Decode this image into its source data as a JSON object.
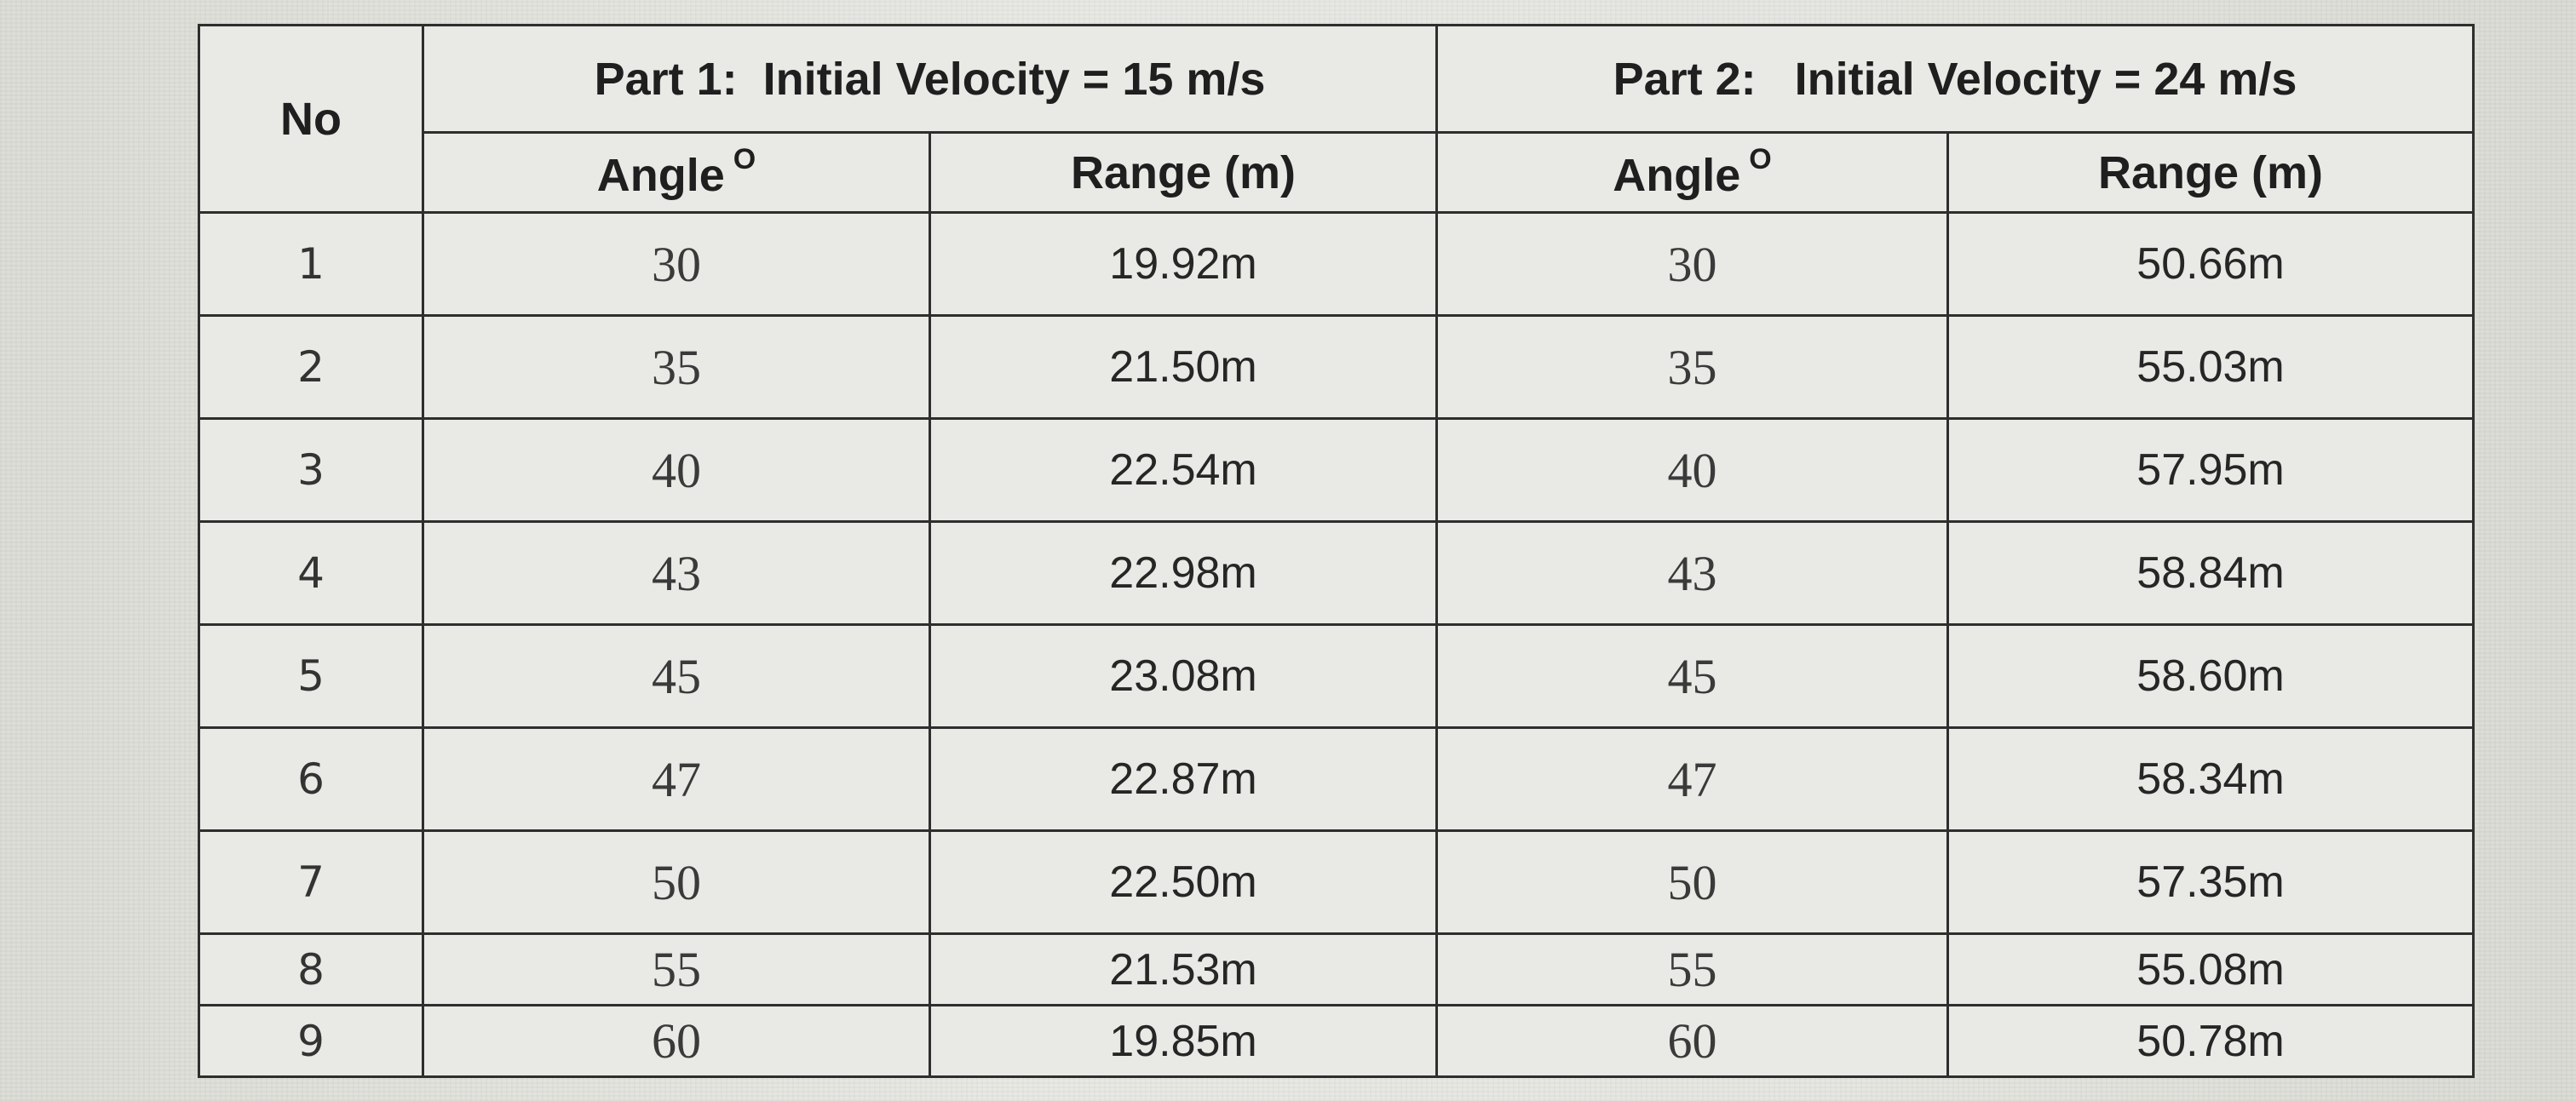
{
  "table": {
    "header": {
      "no_label": "No",
      "part1_title": "Part 1:  Initial Velocity = 15 m/s",
      "part2_title": "Part 2:   Initial Velocity = 24 m/s",
      "angle_label": "Angle",
      "degree_mark": "O",
      "range_label": "Range (m)"
    },
    "rows": [
      {
        "no": "1",
        "angle1": "30",
        "range1": "19.92m",
        "angle2": "30",
        "range2": "50.66m"
      },
      {
        "no": "2",
        "angle1": "35",
        "range1": "21.50m",
        "angle2": "35",
        "range2": "55.03m"
      },
      {
        "no": "3",
        "angle1": "40",
        "range1": "22.54m",
        "angle2": "40",
        "range2": "57.95m"
      },
      {
        "no": "4",
        "angle1": "43",
        "range1": "22.98m",
        "angle2": "43",
        "range2": "58.84m"
      },
      {
        "no": "5",
        "angle1": "45",
        "range1": "23.08m",
        "angle2": "45",
        "range2": "58.60m"
      },
      {
        "no": "6",
        "angle1": "47",
        "range1": "22.87m",
        "angle2": "47",
        "range2": "58.34m"
      },
      {
        "no": "7",
        "angle1": "50",
        "range1": "22.50m",
        "angle2": "50",
        "range2": "57.35m"
      },
      {
        "no": "8",
        "angle1": "55",
        "range1": "21.53m",
        "angle2": "55",
        "range2": "55.08m"
      },
      {
        "no": "9",
        "angle1": "60",
        "range1": "19.85m",
        "angle2": "60",
        "range2": "50.78m"
      }
    ]
  }
}
